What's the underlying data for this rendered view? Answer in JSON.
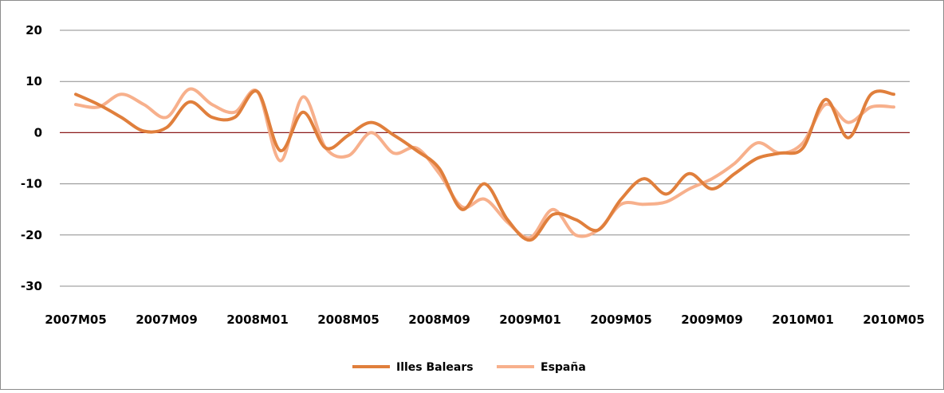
{
  "chart_data": {
    "type": "line",
    "title": "",
    "xlabel": "",
    "ylabel": "",
    "ylim": [
      -30,
      20
    ],
    "yticks": [
      "20",
      "10",
      "0",
      "-10",
      "-20",
      "-30"
    ],
    "x": [
      "2007M05",
      "2007M06",
      "2007M07",
      "2007M08",
      "2007M09",
      "2007M10",
      "2007M11",
      "2007M12",
      "2008M01",
      "2008M02",
      "2008M03",
      "2008M04",
      "2008M05",
      "2008M06",
      "2008M07",
      "2008M08",
      "2008M09",
      "2008M10",
      "2008M11",
      "2008M12",
      "2009M01",
      "2009M02",
      "2009M03",
      "2009M04",
      "2009M05",
      "2009M06",
      "2009M07",
      "2009M08",
      "2009M09",
      "2009M10",
      "2009M11",
      "2009M12",
      "2010M01",
      "2010M02",
      "2010M03",
      "2010M04",
      "2010M05"
    ],
    "xtick_labels": [
      "2007M05",
      "2007M09",
      "2008M01",
      "2008M05",
      "2008M09",
      "2009M01",
      "2009M05",
      "2009M09",
      "2010M01",
      "2010M05"
    ],
    "grid": true,
    "legend_position": "bottom",
    "series": [
      {
        "name": "Illes Balears",
        "color": "#e07f3c",
        "values": [
          7.5,
          5.5,
          3,
          0.3,
          1,
          6,
          3,
          3,
          8,
          -3.5,
          4,
          -3,
          -0.5,
          2,
          -0.5,
          -3.5,
          -7,
          -15,
          -10,
          -17,
          -21,
          -16,
          -17,
          -19,
          -13,
          -9,
          -12,
          -8,
          -11,
          -8,
          -5,
          -4,
          -3,
          6.5,
          -1,
          7.5,
          7.5
        ]
      },
      {
        "name": "España",
        "color": "#f7b08c",
        "values": [
          5.5,
          5,
          7.5,
          5.5,
          3,
          8.5,
          5.5,
          4,
          8,
          -5.5,
          7,
          -3,
          -4.5,
          0,
          -4,
          -3,
          -8,
          -14.5,
          -13,
          -17.5,
          -20.5,
          -15,
          -20,
          -19,
          -14,
          -14,
          -13.5,
          -11,
          -9,
          -6,
          -2,
          -4,
          -2,
          5.5,
          2,
          5,
          5
        ]
      }
    ]
  }
}
